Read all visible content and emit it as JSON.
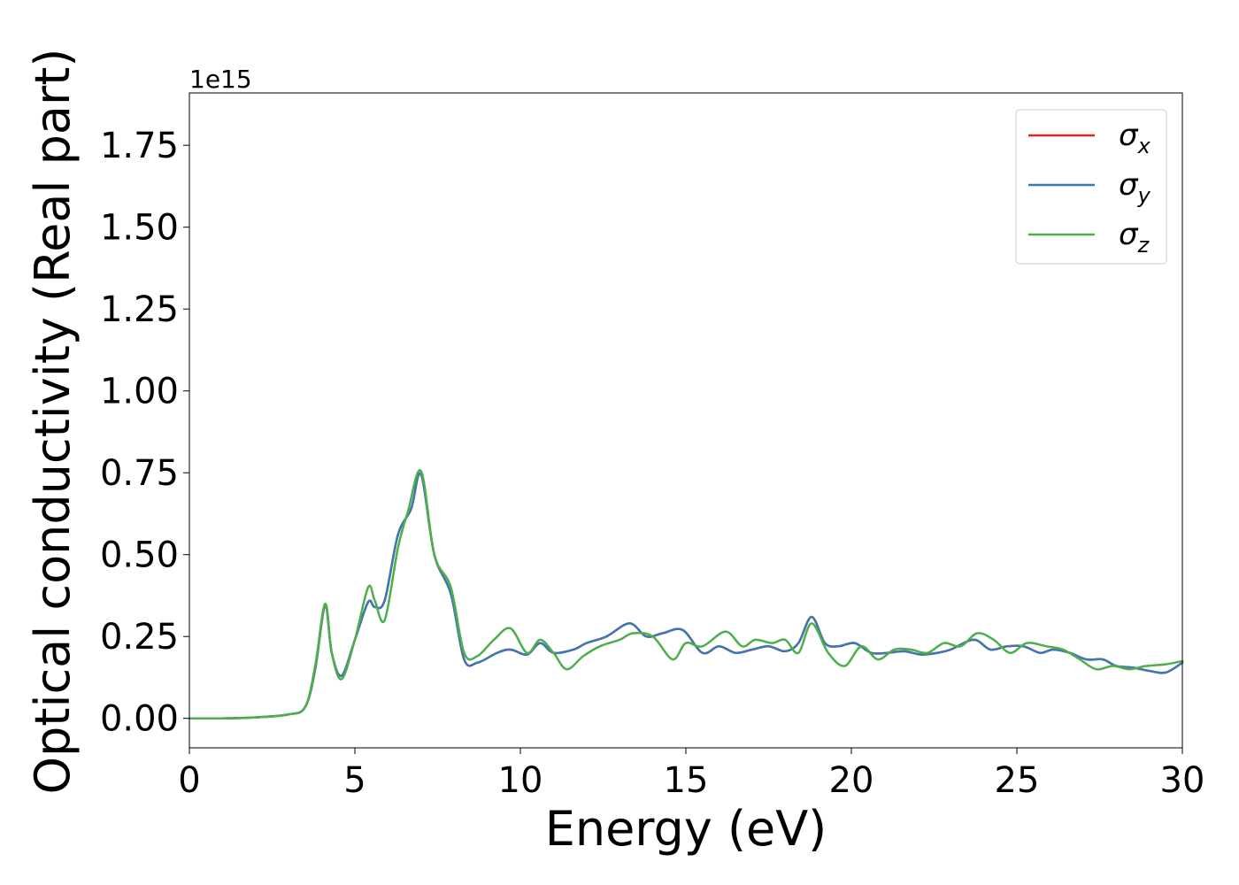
{
  "chart_data": {
    "type": "line",
    "xlabel": "Energy (eV)",
    "ylabel": "Optical conductivity (Real part)",
    "y_offset_text": "1e15",
    "y_scale_factor": 1000000000000000.0,
    "xlim": [
      0,
      30
    ],
    "ylim": [
      -0.09,
      1.91
    ],
    "x_ticks": [
      0,
      5,
      10,
      15,
      20,
      25,
      30
    ],
    "x_tick_labels": [
      "0",
      "5",
      "10",
      "15",
      "20",
      "25",
      "30"
    ],
    "y_ticks": [
      0.0,
      0.25,
      0.5,
      0.75,
      1.0,
      1.25,
      1.5,
      1.75
    ],
    "y_tick_labels": [
      "0.00",
      "0.25",
      "0.50",
      "0.75",
      "1.00",
      "1.25",
      "1.50",
      "1.75"
    ],
    "grid": false,
    "legend_position": "top-right",
    "series": [
      {
        "name": "σx",
        "legend_symbol": "σ",
        "legend_subscript": "x",
        "color": "#d62728",
        "x": [
          0,
          1,
          2,
          3,
          3.5,
          3.8,
          4.1,
          4.3,
          4.6,
          5.0,
          5.4,
          5.6,
          5.9,
          6.3,
          6.7,
          7.0,
          7.4,
          7.9,
          8.3,
          8.7,
          9.3,
          9.7,
          10.2,
          10.6,
          11.0,
          11.6,
          12.0,
          12.6,
          13.3,
          13.8,
          14.3,
          14.9,
          15.5,
          16.0,
          16.5,
          17.0,
          17.5,
          18.0,
          18.4,
          18.8,
          19.2,
          19.6,
          20.1,
          20.6,
          21.1,
          21.6,
          22.1,
          22.6,
          23.0,
          23.7,
          24.2,
          24.7,
          25.2,
          25.7,
          26.1,
          26.6,
          27.1,
          27.6,
          28.0,
          28.5,
          29.0,
          29.5,
          30.0
        ],
        "y": [
          0.0,
          0.0,
          0.003,
          0.012,
          0.035,
          0.15,
          0.345,
          0.2,
          0.13,
          0.24,
          0.355,
          0.34,
          0.36,
          0.56,
          0.64,
          0.745,
          0.5,
          0.38,
          0.18,
          0.17,
          0.2,
          0.21,
          0.195,
          0.23,
          0.2,
          0.21,
          0.23,
          0.25,
          0.29,
          0.25,
          0.26,
          0.27,
          0.2,
          0.22,
          0.2,
          0.21,
          0.22,
          0.205,
          0.23,
          0.31,
          0.23,
          0.22,
          0.23,
          0.2,
          0.2,
          0.205,
          0.195,
          0.2,
          0.21,
          0.24,
          0.21,
          0.22,
          0.22,
          0.2,
          0.21,
          0.2,
          0.18,
          0.18,
          0.16,
          0.155,
          0.145,
          0.14,
          0.17
        ]
      },
      {
        "name": "σy",
        "legend_symbol": "σ",
        "legend_subscript": "y",
        "color": "#3e78b3",
        "x": [
          0,
          1,
          2,
          3,
          3.5,
          3.8,
          4.1,
          4.3,
          4.6,
          5.0,
          5.4,
          5.6,
          5.9,
          6.3,
          6.7,
          7.0,
          7.4,
          7.9,
          8.3,
          8.7,
          9.3,
          9.7,
          10.2,
          10.6,
          11.0,
          11.6,
          12.0,
          12.6,
          13.3,
          13.8,
          14.3,
          14.9,
          15.5,
          16.0,
          16.5,
          17.0,
          17.5,
          18.0,
          18.4,
          18.8,
          19.2,
          19.6,
          20.1,
          20.6,
          21.1,
          21.6,
          22.1,
          22.6,
          23.0,
          23.7,
          24.2,
          24.7,
          25.2,
          25.7,
          26.1,
          26.6,
          27.1,
          27.6,
          28.0,
          28.5,
          29.0,
          29.5,
          30.0
        ],
        "y": [
          0.0,
          0.0,
          0.003,
          0.012,
          0.035,
          0.15,
          0.345,
          0.2,
          0.13,
          0.24,
          0.355,
          0.34,
          0.36,
          0.56,
          0.64,
          0.745,
          0.5,
          0.38,
          0.18,
          0.17,
          0.2,
          0.21,
          0.195,
          0.23,
          0.2,
          0.21,
          0.23,
          0.25,
          0.29,
          0.25,
          0.26,
          0.27,
          0.2,
          0.22,
          0.2,
          0.21,
          0.22,
          0.205,
          0.23,
          0.31,
          0.23,
          0.22,
          0.23,
          0.2,
          0.2,
          0.205,
          0.195,
          0.2,
          0.21,
          0.24,
          0.21,
          0.22,
          0.22,
          0.2,
          0.21,
          0.2,
          0.18,
          0.18,
          0.16,
          0.155,
          0.145,
          0.14,
          0.17
        ]
      },
      {
        "name": "σz",
        "legend_symbol": "σ",
        "legend_subscript": "z",
        "color": "#4daf4a",
        "x": [
          0,
          1,
          2,
          3,
          3.5,
          3.8,
          4.1,
          4.3,
          4.6,
          5.0,
          5.4,
          5.6,
          5.9,
          6.3,
          6.6,
          7.0,
          7.4,
          7.9,
          8.3,
          8.7,
          9.2,
          9.7,
          10.2,
          10.6,
          11.0,
          11.4,
          11.9,
          12.4,
          13.0,
          13.4,
          14.0,
          14.6,
          15.0,
          15.5,
          16.2,
          16.7,
          17.1,
          17.6,
          18.0,
          18.4,
          18.8,
          19.3,
          19.8,
          20.3,
          20.8,
          21.3,
          21.8,
          22.3,
          22.8,
          23.3,
          23.8,
          24.3,
          24.8,
          25.3,
          25.9,
          26.4,
          26.9,
          27.4,
          27.9,
          28.4,
          28.9,
          29.5,
          30.0
        ],
        "y": [
          0.0,
          0.0,
          0.003,
          0.012,
          0.035,
          0.16,
          0.35,
          0.2,
          0.12,
          0.24,
          0.4,
          0.36,
          0.3,
          0.52,
          0.63,
          0.755,
          0.5,
          0.4,
          0.2,
          0.19,
          0.24,
          0.275,
          0.2,
          0.24,
          0.2,
          0.15,
          0.19,
          0.22,
          0.24,
          0.26,
          0.25,
          0.18,
          0.23,
          0.22,
          0.265,
          0.22,
          0.24,
          0.23,
          0.24,
          0.2,
          0.29,
          0.2,
          0.16,
          0.22,
          0.18,
          0.21,
          0.21,
          0.2,
          0.23,
          0.22,
          0.26,
          0.24,
          0.2,
          0.23,
          0.22,
          0.21,
          0.18,
          0.15,
          0.16,
          0.15,
          0.16,
          0.165,
          0.175
        ]
      }
    ]
  }
}
